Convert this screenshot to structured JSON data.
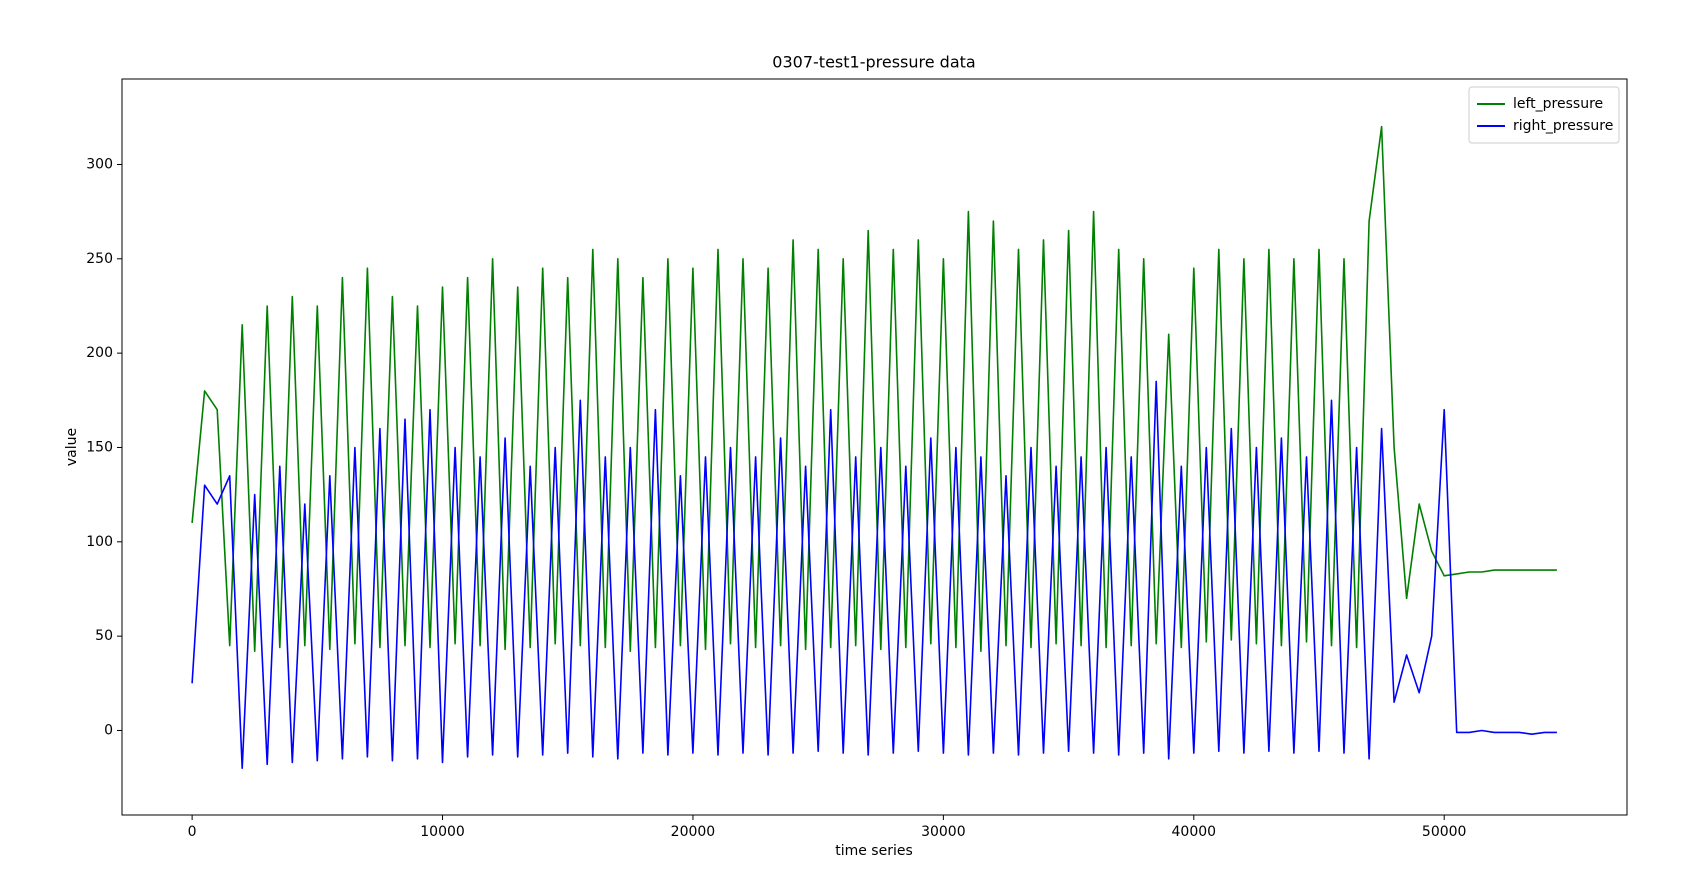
{
  "chart_data": {
    "type": "line",
    "title": "0307-test1-pressure data",
    "x_label": "time series",
    "y_label": "value",
    "xlim": [
      -2800,
      57300
    ],
    "ylim": [
      -44.8,
      345.3
    ],
    "xticks": [
      0,
      10000,
      20000,
      30000,
      40000,
      50000
    ],
    "yticks": [
      0,
      50,
      100,
      150,
      200,
      250,
      300
    ],
    "legend": "upper right",
    "x": [
      0,
      500,
      1000,
      1500,
      2000,
      2500,
      3000,
      3500,
      4000,
      4500,
      5000,
      5500,
      6000,
      6500,
      7000,
      7500,
      8000,
      8500,
      9000,
      9500,
      10000,
      10500,
      11000,
      11500,
      12000,
      12500,
      13000,
      13500,
      14000,
      14500,
      15000,
      15500,
      16000,
      16500,
      17000,
      17500,
      18000,
      18500,
      19000,
      19500,
      20000,
      20500,
      21000,
      21500,
      22000,
      22500,
      23000,
      23500,
      24000,
      24500,
      25000,
      25500,
      26000,
      26500,
      27000,
      27500,
      28000,
      28500,
      29000,
      29500,
      30000,
      30500,
      31000,
      31500,
      32000,
      32500,
      33000,
      33500,
      34000,
      34500,
      35000,
      35500,
      36000,
      36500,
      37000,
      37500,
      38000,
      38500,
      39000,
      39500,
      40000,
      40500,
      41000,
      41500,
      42000,
      42500,
      43000,
      43500,
      44000,
      44500,
      45000,
      45500,
      46000,
      46500,
      47000,
      47500,
      48000,
      48500,
      49000,
      49500,
      50000,
      50500,
      51000,
      51500,
      52000,
      52500,
      53000,
      53500,
      54000,
      54500
    ],
    "series": [
      {
        "name": "left_pressure",
        "color": "#008000",
        "values": [
          110,
          180,
          170,
          45,
          215,
          42,
          225,
          44,
          230,
          45,
          225,
          43,
          240,
          46,
          245,
          44,
          230,
          45,
          225,
          44,
          235,
          46,
          240,
          45,
          250,
          43,
          235,
          44,
          245,
          46,
          240,
          45,
          255,
          44,
          250,
          42,
          240,
          44,
          250,
          45,
          245,
          43,
          255,
          46,
          250,
          44,
          245,
          45,
          260,
          43,
          255,
          44,
          250,
          45,
          265,
          43,
          255,
          44,
          260,
          46,
          250,
          44,
          275,
          42,
          270,
          45,
          255,
          44,
          260,
          46,
          265,
          45,
          275,
          44,
          255,
          45,
          250,
          46,
          210,
          44,
          245,
          47,
          255,
          48,
          250,
          46,
          255,
          45,
          250,
          47,
          255,
          45,
          250,
          44,
          270,
          320,
          150,
          70,
          120,
          95,
          82,
          83,
          84,
          84,
          85,
          85,
          85,
          85,
          85,
          85
        ]
      },
      {
        "name": "right_pressure",
        "color": "#0000ff",
        "values": [
          25,
          130,
          120,
          135,
          -20,
          125,
          -18,
          140,
          -17,
          120,
          -16,
          135,
          -15,
          150,
          -14,
          160,
          -16,
          165,
          -15,
          170,
          -17,
          150,
          -14,
          145,
          -13,
          155,
          -14,
          140,
          -13,
          150,
          -12,
          175,
          -14,
          145,
          -15,
          150,
          -12,
          170,
          -13,
          135,
          -12,
          145,
          -13,
          150,
          -12,
          145,
          -13,
          155,
          -12,
          140,
          -11,
          170,
          -12,
          145,
          -13,
          150,
          -12,
          140,
          -11,
          155,
          -12,
          150,
          -13,
          145,
          -12,
          135,
          -13,
          150,
          -12,
          140,
          -11,
          145,
          -12,
          150,
          -13,
          145,
          -12,
          185,
          -15,
          140,
          -12,
          150,
          -11,
          160,
          -12,
          150,
          -11,
          155,
          -12,
          145,
          -11,
          175,
          -12,
          150,
          -15,
          160,
          15,
          40,
          20,
          50,
          170,
          -1,
          -1,
          0,
          -1,
          -1,
          -1,
          -2,
          -1,
          -1
        ]
      }
    ]
  }
}
